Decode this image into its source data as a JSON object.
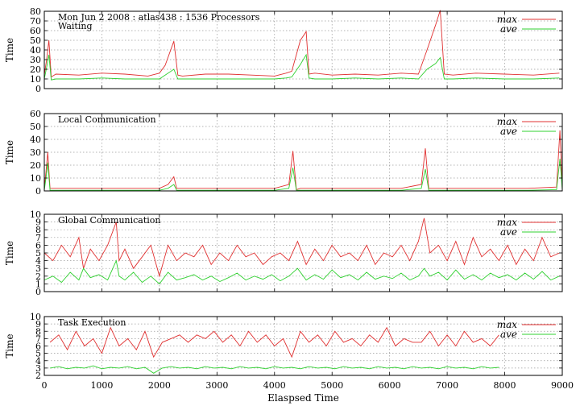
{
  "chart_data": [
    {
      "type": "line",
      "title": "Mon Jun 2 2008 : atlas438 : 1536 Processors",
      "subtitle": "Waiting",
      "xlabel": "",
      "ylabel": "Time",
      "xlim": [
        0,
        9000
      ],
      "ylim": [
        0,
        80
      ],
      "yticks": [
        0,
        10,
        20,
        30,
        40,
        50,
        60,
        70,
        80
      ],
      "xticks": [
        0,
        1000,
        2000,
        3000,
        4000,
        5000,
        6000,
        7000,
        8000,
        9000
      ],
      "grid": true,
      "legend": "top-right",
      "series": [
        {
          "name": "max",
          "color": "#e03030",
          "x": [
            0,
            40,
            80,
            120,
            200,
            600,
            1000,
            1400,
            1800,
            2000,
            2100,
            2250,
            2320,
            2400,
            2800,
            3200,
            3600,
            4000,
            4200,
            4300,
            4450,
            4550,
            4600,
            4700,
            5000,
            5400,
            5800,
            6200,
            6500,
            6650,
            6800,
            6880,
            6950,
            7100,
            7500,
            8000,
            8500,
            8950
          ],
          "y": [
            14,
            30,
            50,
            12,
            15,
            14,
            16,
            15,
            13,
            16,
            24,
            49,
            14,
            13,
            15,
            15,
            14,
            13,
            16,
            18,
            50,
            59,
            15,
            16,
            14,
            15,
            14,
            16,
            15,
            40,
            66,
            81,
            15,
            14,
            16,
            15,
            14,
            16
          ]
        },
        {
          "name": "ave",
          "color": "#30d030",
          "x": [
            0,
            40,
            80,
            120,
            200,
            600,
            1000,
            1400,
            1800,
            2000,
            2100,
            2250,
            2320,
            2400,
            2800,
            3200,
            3600,
            4000,
            4200,
            4300,
            4450,
            4550,
            4600,
            4700,
            5000,
            5400,
            5800,
            6200,
            6500,
            6650,
            6800,
            6880,
            6950,
            7100,
            7500,
            8000,
            8500,
            8950
          ],
          "y": [
            10,
            22,
            35,
            9,
            10,
            10,
            11,
            10,
            10,
            10,
            14,
            20,
            10,
            10,
            10,
            10,
            10,
            10,
            11,
            12,
            25,
            35,
            11,
            10,
            10,
            11,
            10,
            11,
            10,
            20,
            26,
            32,
            10,
            10,
            11,
            10,
            10,
            11
          ]
        }
      ]
    },
    {
      "type": "line",
      "title": "Local Communication",
      "xlabel": "",
      "ylabel": "Time",
      "xlim": [
        0,
        9000
      ],
      "ylim": [
        0,
        60
      ],
      "yticks": [
        0,
        10,
        20,
        30,
        40,
        50,
        60
      ],
      "xticks": [
        0,
        1000,
        2000,
        3000,
        4000,
        5000,
        6000,
        7000,
        8000,
        9000
      ],
      "grid": true,
      "legend": "top-right",
      "series": [
        {
          "name": "max",
          "color": "#e03030",
          "x": [
            0,
            30,
            60,
            100,
            400,
            1000,
            1500,
            2000,
            2150,
            2250,
            2300,
            2800,
            3400,
            4000,
            4250,
            4320,
            4380,
            4450,
            5000,
            5600,
            6200,
            6550,
            6620,
            6680,
            6750,
            7200,
            7800,
            8400,
            8900,
            8960,
            9000
          ],
          "y": [
            2,
            15,
            30,
            2,
            2,
            2,
            2,
            2,
            5,
            11,
            2,
            2,
            2,
            2,
            5,
            31,
            1,
            2,
            2,
            2,
            2,
            5,
            33,
            2,
            2,
            2,
            2,
            2,
            3,
            47,
            2
          ]
        },
        {
          "name": "ave",
          "color": "#30d030",
          "x": [
            0,
            30,
            60,
            100,
            400,
            1000,
            1500,
            2000,
            2150,
            2250,
            2300,
            2800,
            3400,
            4000,
            4250,
            4320,
            4380,
            4450,
            5000,
            5600,
            6200,
            6550,
            6620,
            6680,
            6750,
            7200,
            7800,
            8400,
            8900,
            8960,
            9000
          ],
          "y": [
            0.5,
            10,
            22,
            0.5,
            0.5,
            0.5,
            0.5,
            0.5,
            2,
            5,
            0.5,
            0.5,
            0.5,
            0.5,
            2,
            18,
            0.5,
            0.5,
            0.5,
            0.5,
            0.5,
            2,
            17,
            0.5,
            0.5,
            0.5,
            0.5,
            0.5,
            1,
            25,
            0.5
          ]
        }
      ]
    },
    {
      "type": "line",
      "title": "Global Communication",
      "xlabel": "",
      "ylabel": "Time",
      "xlim": [
        0,
        9000
      ],
      "ylim": [
        0,
        10
      ],
      "yticks": [
        0,
        1,
        2,
        3,
        4,
        5,
        6,
        7,
        8,
        9,
        10
      ],
      "xticks": [
        0,
        1000,
        2000,
        3000,
        4000,
        5000,
        6000,
        7000,
        8000,
        9000
      ],
      "grid": true,
      "legend": "top-right",
      "series": [
        {
          "name": "max",
          "color": "#e03030",
          "x": [
            0,
            150,
            300,
            450,
            600,
            680,
            800,
            950,
            1100,
            1250,
            1300,
            1400,
            1550,
            1700,
            1850,
            2000,
            2150,
            2300,
            2450,
            2600,
            2750,
            2900,
            3050,
            3200,
            3350,
            3500,
            3650,
            3800,
            3950,
            4100,
            4250,
            4400,
            4550,
            4700,
            4850,
            5000,
            5150,
            5300,
            5450,
            5600,
            5750,
            5900,
            6050,
            6200,
            6350,
            6500,
            6600,
            6700,
            6850,
            7000,
            7150,
            7300,
            7450,
            7600,
            7750,
            7900,
            8050,
            8200,
            8350,
            8500,
            8650,
            8800,
            8950
          ],
          "y": [
            5,
            4,
            6,
            4.5,
            7,
            3,
            5.5,
            4,
            6,
            9,
            4,
            5.5,
            3,
            4.5,
            6,
            2,
            6,
            4,
            5,
            4.5,
            6,
            3.5,
            5,
            4,
            6,
            4.5,
            5,
            3.5,
            4.5,
            5,
            4,
            6.5,
            3.5,
            5.5,
            4,
            6,
            4.5,
            5,
            4,
            6,
            3.5,
            5,
            4.5,
            6,
            4,
            6.5,
            9.5,
            5,
            6,
            4,
            6.5,
            3.5,
            7,
            4.5,
            5.5,
            4,
            6,
            3.5,
            5.5,
            4,
            7,
            4.5,
            5
          ]
        },
        {
          "name": "ave",
          "color": "#30d030",
          "x": [
            0,
            150,
            300,
            450,
            600,
            680,
            800,
            950,
            1100,
            1250,
            1300,
            1400,
            1550,
            1700,
            1850,
            2000,
            2150,
            2300,
            2450,
            2600,
            2750,
            2900,
            3050,
            3200,
            3350,
            3500,
            3650,
            3800,
            3950,
            4100,
            4250,
            4400,
            4550,
            4700,
            4850,
            5000,
            5150,
            5300,
            5450,
            5600,
            5750,
            5900,
            6050,
            6200,
            6350,
            6500,
            6600,
            6700,
            6850,
            7000,
            7150,
            7300,
            7450,
            7600,
            7750,
            7900,
            8050,
            8200,
            8350,
            8500,
            8650,
            8800,
            8950
          ],
          "y": [
            1.5,
            2,
            1.2,
            2.5,
            1.5,
            3,
            1.8,
            2.2,
            1.5,
            4,
            2,
            1.5,
            2.5,
            1.2,
            2,
            1,
            2.5,
            1.5,
            1.8,
            2.2,
            1.5,
            2,
            1.3,
            1.8,
            2.4,
            1.5,
            2,
            1.6,
            2.2,
            1.4,
            2,
            3,
            1.5,
            2.2,
            1.6,
            2.8,
            1.8,
            2.2,
            1.5,
            2.5,
            1.6,
            2,
            1.7,
            2.4,
            1.5,
            2,
            3,
            2,
            2.5,
            1.5,
            2.8,
            1.6,
            2.2,
            1.5,
            2.4,
            1.8,
            2.2,
            1.5,
            2.4,
            1.6,
            2.6,
            1.5,
            2
          ]
        }
      ]
    },
    {
      "type": "line",
      "title": "Task Execution",
      "xlabel": "Elaspsed Time",
      "ylabel": "Time",
      "xlim": [
        0,
        9000
      ],
      "ylim": [
        2,
        10
      ],
      "yticks": [
        2,
        3,
        4,
        5,
        6,
        7,
        8,
        9,
        10
      ],
      "xticks": [
        0,
        1000,
        2000,
        3000,
        4000,
        5000,
        6000,
        7000,
        8000,
        9000
      ],
      "grid": true,
      "legend": "top-right",
      "series": [
        {
          "name": "max",
          "color": "#e03030",
          "x": [
            100,
            250,
            400,
            550,
            700,
            850,
            1000,
            1150,
            1300,
            1450,
            1600,
            1750,
            1900,
            2050,
            2200,
            2350,
            2500,
            2650,
            2800,
            2950,
            3100,
            3250,
            3400,
            3550,
            3700,
            3850,
            4000,
            4150,
            4300,
            4450,
            4600,
            4750,
            4900,
            5050,
            5200,
            5350,
            5500,
            5650,
            5800,
            5950,
            6100,
            6250,
            6400,
            6550,
            6700,
            6850,
            7000,
            7150,
            7300,
            7450,
            7600,
            7750,
            7900
          ],
          "y": [
            6.5,
            7.5,
            5.5,
            8,
            6,
            7,
            5,
            8.5,
            6,
            7,
            5.5,
            8,
            4.5,
            6.5,
            7,
            7.5,
            6.5,
            7.5,
            7,
            8,
            6.5,
            7.5,
            6,
            8,
            6.5,
            7.5,
            6,
            7,
            4.5,
            8,
            6.5,
            7.5,
            6,
            8,
            6.5,
            7,
            6,
            7.5,
            6.5,
            8.5,
            6,
            7,
            6.5,
            6.5,
            8,
            6,
            7.5,
            6,
            8,
            6.5,
            7,
            6,
            7.5
          ]
        },
        {
          "name": "ave",
          "color": "#30d030",
          "x": [
            100,
            250,
            400,
            550,
            700,
            850,
            1000,
            1150,
            1300,
            1450,
            1600,
            1750,
            1900,
            2050,
            2200,
            2350,
            2500,
            2650,
            2800,
            2950,
            3100,
            3250,
            3400,
            3550,
            3700,
            3850,
            4000,
            4150,
            4300,
            4450,
            4600,
            4750,
            4900,
            5050,
            5200,
            5350,
            5500,
            5650,
            5800,
            5950,
            6100,
            6250,
            6400,
            6550,
            6700,
            6850,
            7000,
            7150,
            7300,
            7450,
            7600,
            7750,
            7900
          ],
          "y": [
            3,
            3.2,
            2.9,
            3.1,
            3,
            3.3,
            2.9,
            3.1,
            3,
            3.2,
            2.9,
            3.1,
            2.3,
            3,
            3.2,
            3,
            3.1,
            2.9,
            3.2,
            3,
            3.1,
            2.9,
            3.2,
            3,
            3.1,
            2.9,
            3.2,
            3,
            3.1,
            2.9,
            3.2,
            3,
            3.1,
            2.9,
            3.2,
            3,
            3.1,
            2.9,
            3.2,
            3,
            3.1,
            2.9,
            3.2,
            3,
            3.1,
            2.9,
            3.2,
            3,
            3.1,
            2.9,
            3.2,
            3,
            3.1
          ]
        }
      ]
    }
  ]
}
